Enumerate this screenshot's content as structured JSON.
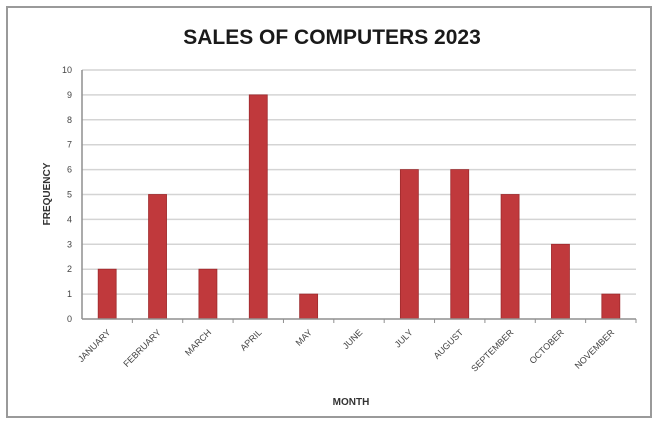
{
  "chart_data": {
    "type": "bar",
    "title": "SALES OF COMPUTERS 2023",
    "xlabel": "MONTH",
    "ylabel": "FREQUENCY",
    "categories": [
      "JANUARY",
      "FEBRUARY",
      "MARCH",
      "APRIL",
      "MAY",
      "JUNE",
      "JULY",
      "AUGUST",
      "SEPTEMBER",
      "OCTOBER",
      "NOVEMBER"
    ],
    "values": [
      2,
      5,
      2,
      9,
      1,
      0,
      6,
      6,
      5,
      3,
      1
    ],
    "ylim": [
      0,
      10
    ],
    "yticks": [
      "0",
      "1",
      "2",
      "3",
      "4",
      "5",
      "6",
      "7",
      "8",
      "9",
      "10"
    ],
    "grid": true,
    "legend": "none",
    "bar_color": "#c0393c",
    "grid_color": "#d4d4d4",
    "axis_color": "#8f8f8f"
  }
}
